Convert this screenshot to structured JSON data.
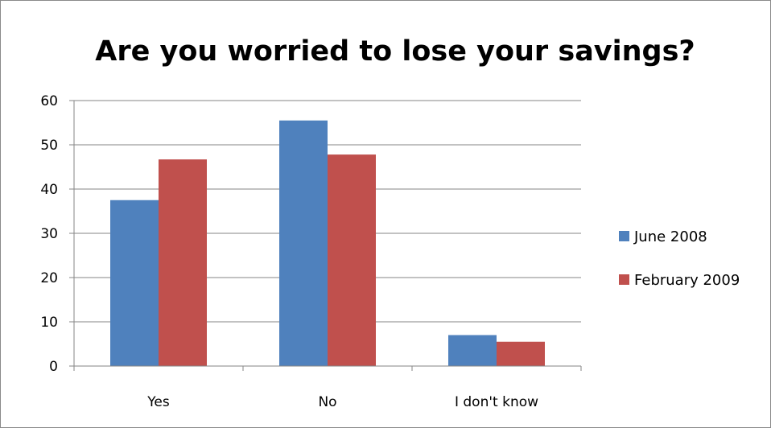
{
  "chart_data": {
    "type": "bar",
    "title": "Are you worried to lose your savings?",
    "categories": [
      "Yes",
      "No",
      "I don't know"
    ],
    "series": [
      {
        "name": "June 2008",
        "color": "#4F81BD",
        "values": [
          37.5,
          55.5,
          7
        ]
      },
      {
        "name": "February 2009",
        "color": "#C0504D",
        "values": [
          46.7,
          47.8,
          5.5
        ]
      }
    ],
    "yticks": [
      0,
      10,
      20,
      30,
      40,
      50,
      60
    ],
    "ylim": [
      0,
      60
    ],
    "grid": true,
    "legend_position": "right",
    "gridline_color": "#868686"
  }
}
